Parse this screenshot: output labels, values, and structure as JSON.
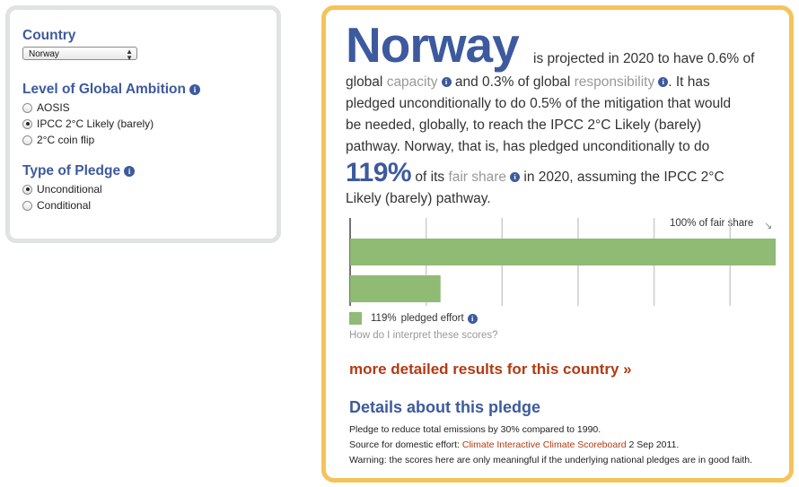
{
  "left": {
    "country_title": "Country",
    "country_value": "Norway",
    "ambition_title": "Level of Global Ambition",
    "ambition_options": [
      "AOSIS",
      "IPCC 2°C Likely (barely)",
      "2°C coin flip"
    ],
    "ambition_selected": 1,
    "pledge_title": "Type of Pledge",
    "pledge_options": [
      "Unconditional",
      "Conditional"
    ],
    "pledge_selected": 0
  },
  "summary": {
    "country": "Norway",
    "line1": "is projected in 2020 to have 0.6% of",
    "l2_a": "global",
    "l2_capacity": "capacity",
    "l2_b": "and 0.3% of global",
    "l2_responsibility": "responsibility",
    "l2_c": ". It has",
    "line3": "pledged unconditionally to do 0.5% of the mitigation that would",
    "line4": "be needed, globally, to reach the IPCC 2°C Likely (barely)",
    "line5": "pathway. Norway, that is, has pledged unconditionally to do",
    "pct": "119%",
    "l6_a": "of its",
    "l6_fair": "fair share",
    "l6_b": "in 2020, assuming the IPCC 2°C",
    "line7": "Likely (barely) pathway."
  },
  "chart_data": {
    "type": "bar",
    "orientation": "horizontal",
    "reference_label": "100% of fair share",
    "reference_value": 100,
    "pledged_value": 119,
    "legend_pct": "119%",
    "legend_label": "pledged effort",
    "colors": {
      "bar": "#8fbb74",
      "axis": "#444444",
      "grid": "#cccccc"
    }
  },
  "help_link": "How do I interpret these scores?",
  "more_link": "more detailed results for this country »",
  "details": {
    "title": "Details about this pledge",
    "line1": "Pledge to reduce total emissions by 30% compared to 1990.",
    "source_prefix": "Source for domestic effort:",
    "source_link": "Climate Interactive Climate Scoreboard",
    "source_date": "2 Sep 2011.",
    "warning": "Warning: the scores here are only meaningful if the underlying national pledges are in good faith."
  }
}
